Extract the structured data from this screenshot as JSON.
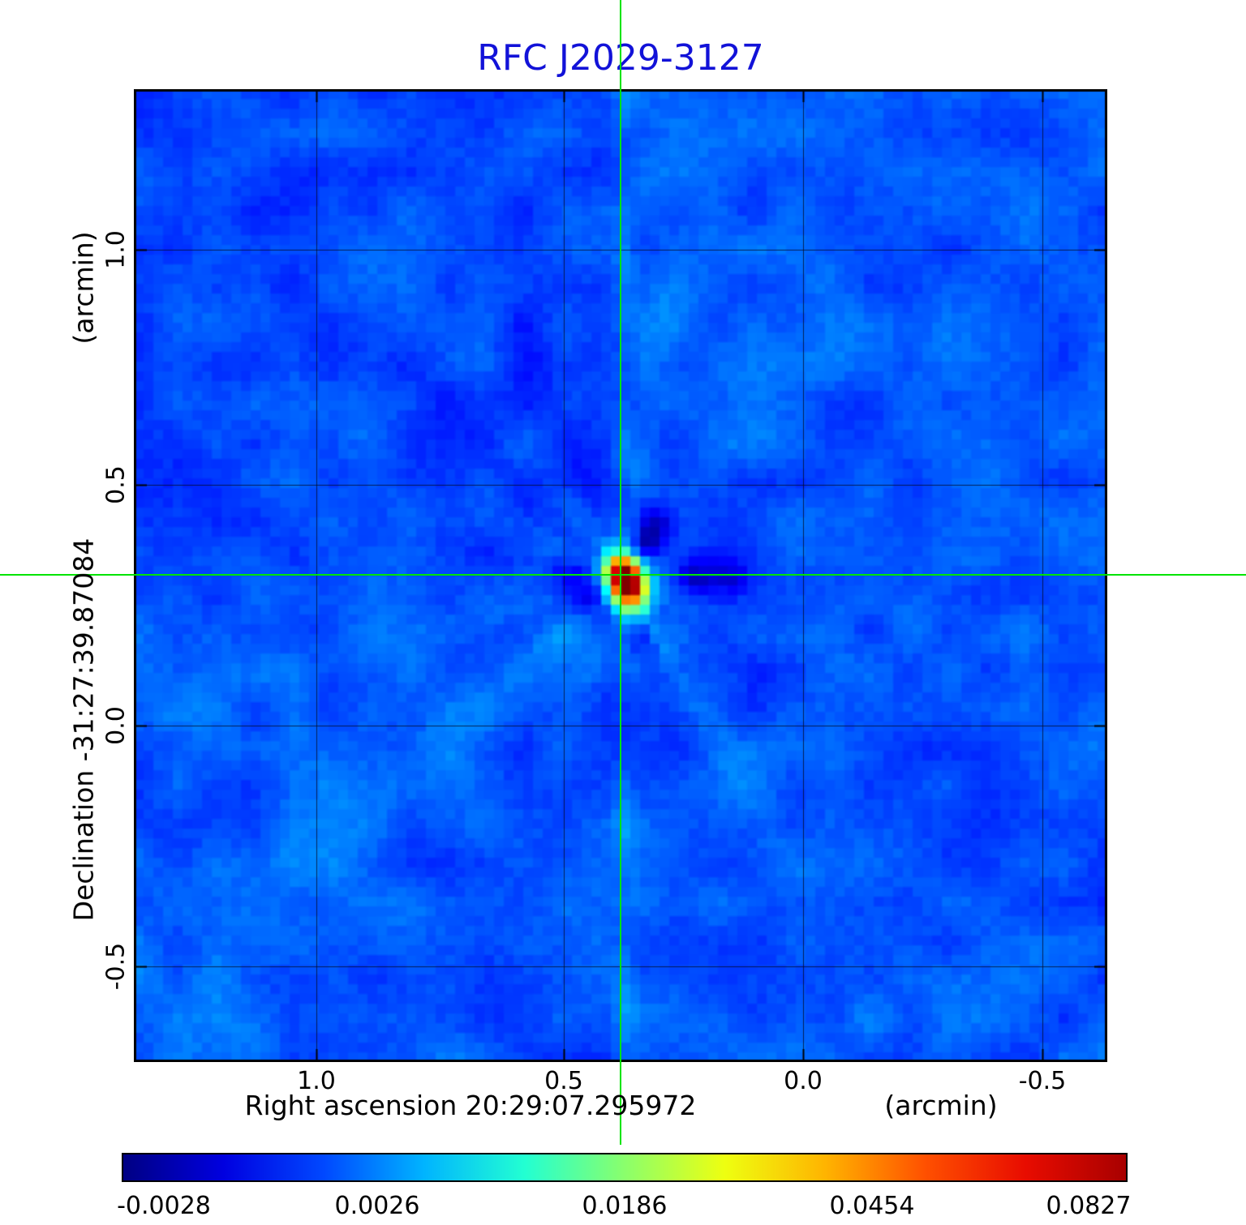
{
  "title": "RFC J2029-3127",
  "title_color": "#1212d8",
  "axes": {
    "x_axis_label": "Right ascension  20:29:07.295972",
    "x_unit_label": "(arcmin)",
    "y_axis_label": "Declination  -31:27:39.87084",
    "y_unit_label": "(arcmin)",
    "x_tick_labels": [
      "1.0",
      "0.5",
      "0.0",
      "-0.5"
    ],
    "y_tick_labels": [
      "1.0",
      "0.5",
      "0.0",
      "-0.5"
    ]
  },
  "colorbar": {
    "labels": [
      "-0.0028",
      "0.0026",
      "0.0186",
      "0.0454",
      "0.0827"
    ],
    "stops": [
      "#000083",
      "#0000e0",
      "#0048ff",
      "#00b4ff",
      "#22ffd2",
      "#8aff6c",
      "#eeff10",
      "#ffb400",
      "#ff5000",
      "#e80c00",
      "#a80000"
    ]
  },
  "crosshair_color": "#00e400",
  "chart_data": {
    "type": "heatmap",
    "title": "RFC J2029-3127",
    "xlabel": "Right ascension  20:29:07.295972 (arcmin)",
    "ylabel": "Declination  -31:27:39.87084 (arcmin)",
    "x_tick_values_arcmin": [
      1.0,
      0.5,
      0.0,
      -0.5
    ],
    "y_tick_values_arcmin": [
      1.0,
      0.5,
      0.0,
      -0.5
    ],
    "x_range_arcmin": [
      1.38,
      -0.66
    ],
    "y_range_arcmin": [
      -0.68,
      1.33
    ],
    "colormap": "jet",
    "intensity_min": -0.0028,
    "intensity_max": 0.0827,
    "colorbar_tick_values": [
      -0.0028,
      0.0026,
      0.0186,
      0.0454,
      0.0827
    ],
    "grid": true,
    "source": {
      "description": "compact bright source at map center marked by green crosshair",
      "x_frac_in_plot": 0.5,
      "y_frac_in_plot": 0.5,
      "peak_value": 0.0827
    },
    "background_level_approx": 0.0,
    "crosshair_color": "#00e400",
    "legend_position": "bottom-colorbar"
  }
}
